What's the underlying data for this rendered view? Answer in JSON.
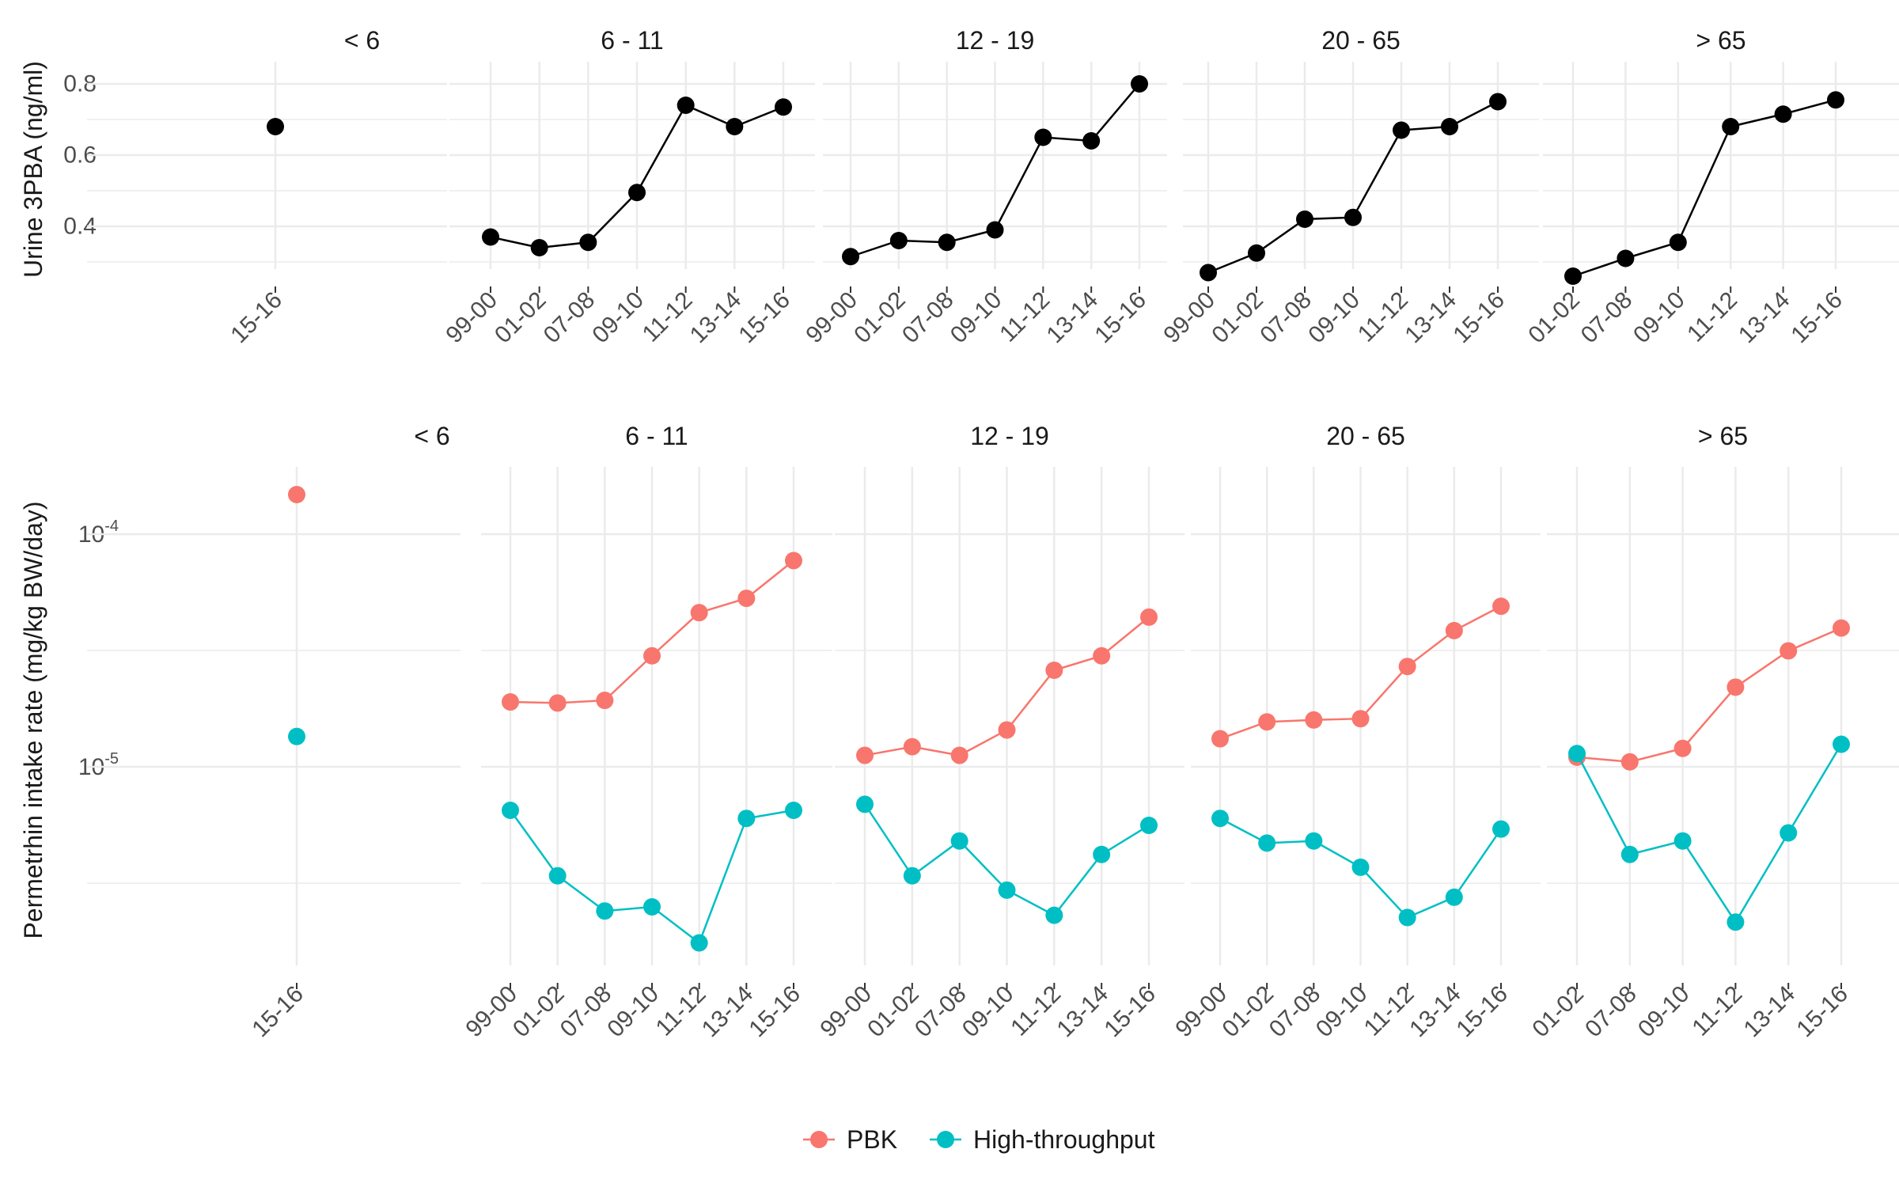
{
  "colors": {
    "urine_series": "#000000",
    "pbk": "#F8766D",
    "high_throughput": "#00BFC4",
    "grid": "#EBEBEB",
    "text": "#1A1A1A",
    "tick_text": "#4D4D4D"
  },
  "legend": {
    "position": "bottom",
    "items": [
      {
        "label": "PBK",
        "color": "#F8766D"
      },
      {
        "label": "High-throughput",
        "color": "#00BFC4"
      }
    ]
  },
  "chart_data": [
    {
      "type": "line",
      "ylabel": "Urine 3PBA (ng/ml)",
      "xlabel": "",
      "y_scale": "linear",
      "ylim": [
        0.28,
        0.84
      ],
      "y_ticks": [
        {
          "value": 0.4,
          "label": "0.4"
        },
        {
          "value": 0.6,
          "label": "0.6"
        },
        {
          "value": 0.8,
          "label": "0.8"
        }
      ],
      "y_minor": [
        0.3,
        0.5,
        0.7
      ],
      "grid": true,
      "facets": [
        {
          "title": "< 6",
          "categories": [
            "15-16"
          ],
          "series": [
            {
              "values": [
                0.68
              ]
            }
          ]
        },
        {
          "title": "6 - 11",
          "categories": [
            "99-00",
            "01-02",
            "07-08",
            "09-10",
            "11-12",
            "13-14",
            "15-16"
          ],
          "series": [
            {
              "values": [
                0.37,
                0.34,
                0.355,
                0.495,
                0.74,
                0.68,
                0.735
              ]
            }
          ]
        },
        {
          "title": "12 - 19",
          "categories": [
            "99-00",
            "01-02",
            "07-08",
            "09-10",
            "11-12",
            "13-14",
            "15-16"
          ],
          "series": [
            {
              "values": [
                0.315,
                0.36,
                0.355,
                0.39,
                0.65,
                0.64,
                0.8
              ]
            }
          ]
        },
        {
          "title": "20 - 65",
          "categories": [
            "99-00",
            "01-02",
            "07-08",
            "09-10",
            "11-12",
            "13-14",
            "15-16"
          ],
          "series": [
            {
              "values": [
                0.27,
                0.325,
                0.42,
                0.425,
                0.67,
                0.68,
                0.75
              ]
            }
          ]
        },
        {
          "title": "> 65",
          "categories": [
            "01-02",
            "07-08",
            "09-10",
            "11-12",
            "13-14",
            "15-16"
          ],
          "series": [
            {
              "values": [
                0.26,
                0.31,
                0.355,
                0.68,
                0.715,
                0.755
              ]
            }
          ]
        }
      ]
    },
    {
      "type": "line",
      "ylabel": "Permetrhin intake rate (mg/kg BW/day)",
      "xlabel": "",
      "y_scale": "log",
      "ylim": [
        1.4e-06,
        0.00018
      ],
      "y_ticks": [
        {
          "value": 1e-05,
          "base": "10",
          "exp": "-5"
        },
        {
          "value": 0.0001,
          "base": "10",
          "exp": "-4"
        }
      ],
      "y_minor": [
        3.16e-06,
        3.16e-05
      ],
      "grid": true,
      "facets": [
        {
          "title": "< 6",
          "categories": [
            "15-16"
          ],
          "series": [
            {
              "name": "PBK",
              "values": [
                0.000148
              ]
            },
            {
              "name": "High-throughput",
              "values": [
                1.35e-05
              ]
            }
          ]
        },
        {
          "title": "6 - 11",
          "categories": [
            "99-00",
            "01-02",
            "07-08",
            "09-10",
            "11-12",
            "13-14",
            "15-16"
          ],
          "series": [
            {
              "name": "PBK",
              "values": [
                1.9e-05,
                1.88e-05,
                1.93e-05,
                3e-05,
                4.6e-05,
                5.3e-05,
                7.7e-05
              ]
            },
            {
              "name": "High-throughput",
              "values": [
                6.5e-06,
                3.4e-06,
                2.4e-06,
                2.5e-06,
                1.75e-06,
                6e-06,
                6.5e-06
              ]
            }
          ]
        },
        {
          "title": "12 - 19",
          "categories": [
            "99-00",
            "01-02",
            "07-08",
            "09-10",
            "11-12",
            "13-14",
            "15-16"
          ],
          "series": [
            {
              "name": "PBK",
              "values": [
                1.12e-05,
                1.22e-05,
                1.12e-05,
                1.44e-05,
                2.6e-05,
                3e-05,
                4.4e-05
              ]
            },
            {
              "name": "High-throughput",
              "values": [
                6.9e-06,
                3.4e-06,
                4.8e-06,
                2.95e-06,
                2.3e-06,
                4.2e-06,
                5.6e-06
              ]
            }
          ]
        },
        {
          "title": "20 - 65",
          "categories": [
            "99-00",
            "01-02",
            "07-08",
            "09-10",
            "11-12",
            "13-14",
            "15-16"
          ],
          "series": [
            {
              "name": "PBK",
              "values": [
                1.32e-05,
                1.56e-05,
                1.59e-05,
                1.61e-05,
                2.7e-05,
                3.85e-05,
                4.9e-05
              ]
            },
            {
              "name": "High-throughput",
              "values": [
                6e-06,
                4.7e-06,
                4.8e-06,
                3.7e-06,
                2.25e-06,
                2.75e-06,
                5.4e-06
              ]
            }
          ]
        },
        {
          "title": "> 65",
          "categories": [
            "01-02",
            "07-08",
            "09-10",
            "11-12",
            "13-14",
            "15-16"
          ],
          "series": [
            {
              "name": "PBK",
              "values": [
                1.1e-05,
                1.05e-05,
                1.2e-05,
                2.2e-05,
                3.15e-05,
                3.95e-05
              ]
            },
            {
              "name": "High-throughput",
              "values": [
                1.14e-05,
                4.2e-06,
                4.8e-06,
                2.15e-06,
                5.2e-06,
                1.25e-05
              ]
            }
          ]
        }
      ]
    }
  ]
}
